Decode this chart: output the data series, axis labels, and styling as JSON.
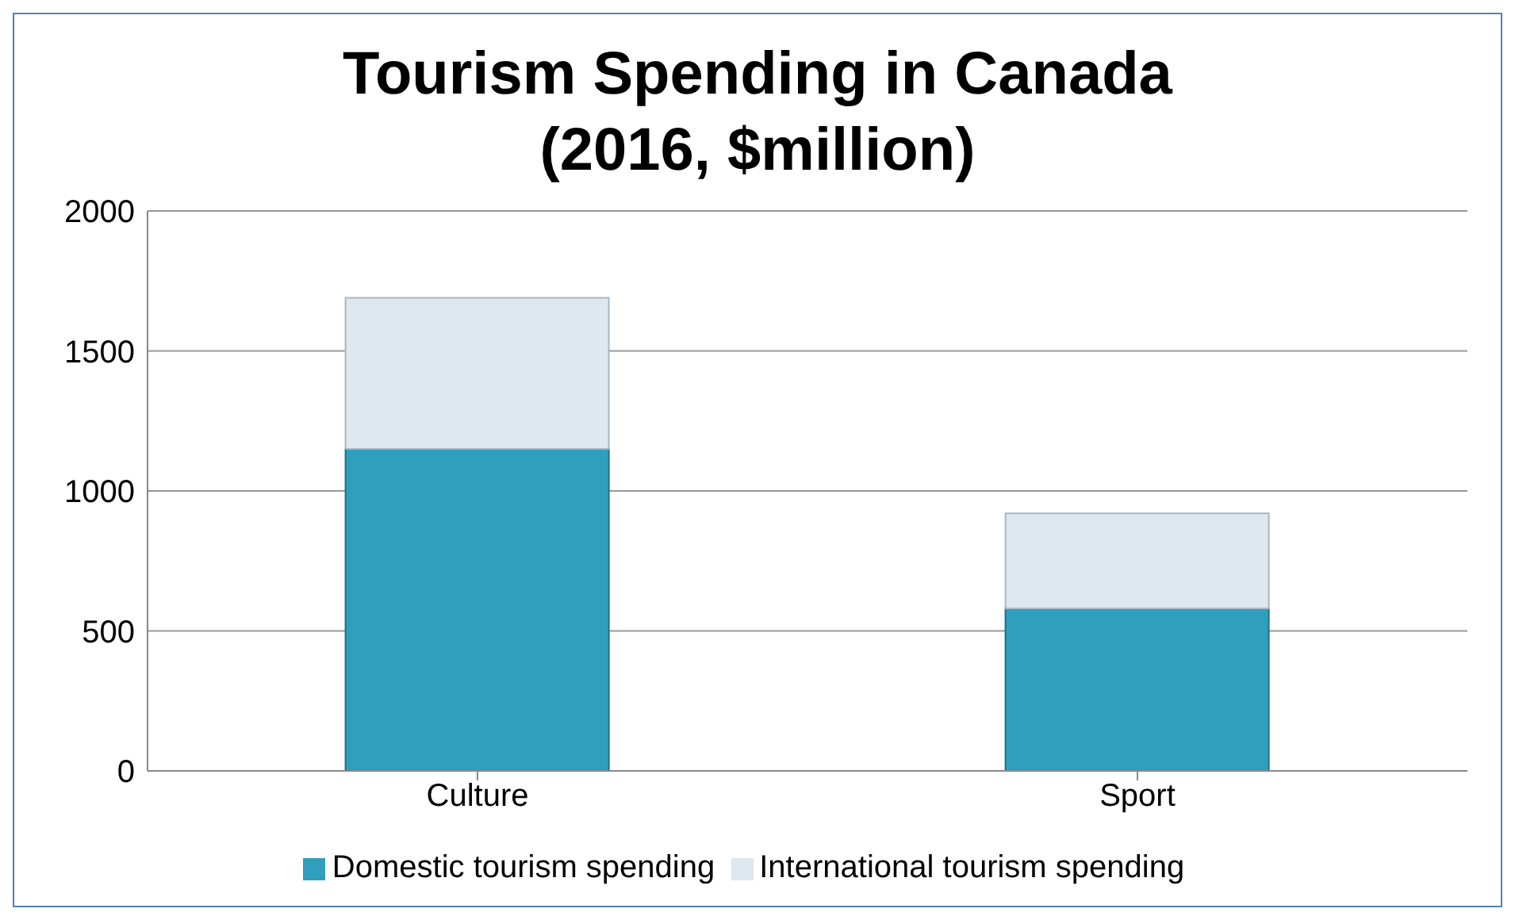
{
  "chart_data": {
    "type": "bar",
    "title": "Tourism Spending in Canada\n(2016, $million)",
    "categories": [
      "Culture",
      "Sport"
    ],
    "stacked": true,
    "series": [
      {
        "name": "Domestic tourism spending",
        "color": "#2f9fbd",
        "values": [
          1150,
          580
        ]
      },
      {
        "name": "International tourism spending",
        "color": "#dfe7ef",
        "values": [
          540,
          340
        ]
      }
    ],
    "ylim": [
      0,
      2000
    ],
    "yticks": [
      0,
      500,
      1000,
      1500,
      2000
    ],
    "grid": "y",
    "legend": "bottom"
  }
}
